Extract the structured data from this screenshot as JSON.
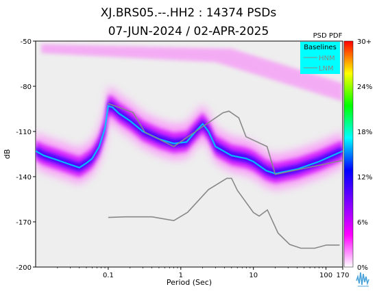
{
  "chart_data": {
    "type": "heatmap",
    "title_line1": "XJ.BRS05.--.HH2 : 14374 PSDs",
    "title_line2": "07-JUN-2024 / 02-APR-2025",
    "xlabel": "Period (Sec)",
    "ylabel": "dB",
    "x_scale": "log",
    "xlim": [
      0.01,
      170
    ],
    "ylim": [
      -200,
      -50
    ],
    "x_ticks": [
      "0.1",
      "1",
      "10",
      "100",
      "170"
    ],
    "x_tick_values": [
      0.1,
      1,
      10,
      100,
      170
    ],
    "y_ticks": [
      "-50",
      "-80",
      "-110",
      "-140",
      "-170",
      "-200"
    ],
    "y_tick_values": [
      -50,
      -80,
      -110,
      -140,
      -170,
      -200
    ],
    "background_color": "#eeeeee",
    "colorbar": {
      "title": "PSD PDF",
      "labels": [
        "30+",
        "24%",
        "18%",
        "12%",
        "6%",
        "0%"
      ],
      "label_values": [
        30,
        24,
        18,
        12,
        6,
        0
      ],
      "colors": [
        "#ffffff",
        "#ff00ff",
        "#7f00ff",
        "#0000ff",
        "#00ffff",
        "#00ff00",
        "#ffff00",
        "#ff0000"
      ]
    },
    "legend": {
      "title": "Baselines",
      "position": "top-right",
      "background": "#00ffff",
      "entries": [
        {
          "label": "HNM",
          "color": "#888888"
        },
        {
          "label": "LNM",
          "color": "#888888"
        }
      ]
    },
    "series": [
      {
        "name": "HNM",
        "color": "#888888",
        "points": [
          [
            0.1,
            -91.5
          ],
          [
            0.22,
            -97.4
          ],
          [
            0.32,
            -110.5
          ],
          [
            0.8,
            -120.0
          ],
          [
            3.8,
            -97.6
          ],
          [
            4.6,
            -96.5
          ],
          [
            6.3,
            -101.0
          ],
          [
            7.9,
            -113.5
          ],
          [
            15.4,
            -120.0
          ],
          [
            20.0,
            -138.5
          ],
          [
            354.8,
            -126.0
          ]
        ]
      },
      {
        "name": "LNM",
        "color": "#888888",
        "points": [
          [
            0.1,
            -167.1
          ],
          [
            0.17,
            -166.7
          ],
          [
            0.4,
            -166.7
          ],
          [
            0.8,
            -169.2
          ],
          [
            1.24,
            -163.7
          ],
          [
            2.4,
            -148.6
          ],
          [
            4.3,
            -141.1
          ],
          [
            5.0,
            -141.1
          ],
          [
            6.0,
            -149.0
          ],
          [
            10.0,
            -163.8
          ],
          [
            12.0,
            -166.2
          ],
          [
            15.6,
            -162.1
          ],
          [
            21.9,
            -177.5
          ],
          [
            31.6,
            -185.0
          ],
          [
            45.0,
            -187.5
          ],
          [
            70.0,
            -187.5
          ],
          [
            101.0,
            -185.4
          ],
          [
            154.0,
            -185.4
          ]
        ]
      }
    ],
    "pdf_mode_curve": {
      "description": "",
      "points": [
        [
          0.01,
          -123
        ],
        [
          0.013,
          -126
        ],
        [
          0.02,
          -129
        ],
        [
          0.03,
          -132
        ],
        [
          0.04,
          -134
        ],
        [
          0.05,
          -131
        ],
        [
          0.06,
          -128
        ],
        [
          0.075,
          -120
        ],
        [
          0.09,
          -108
        ],
        [
          0.1,
          -93
        ],
        [
          0.115,
          -94
        ],
        [
          0.14,
          -98
        ],
        [
          0.2,
          -103
        ],
        [
          0.3,
          -110
        ],
        [
          0.5,
          -115
        ],
        [
          0.8,
          -118
        ],
        [
          1.2,
          -117
        ],
        [
          1.6,
          -110
        ],
        [
          2.0,
          -105
        ],
        [
          2.4,
          -110
        ],
        [
          3.0,
          -120
        ],
        [
          5.0,
          -126
        ],
        [
          8.0,
          -128
        ],
        [
          10.0,
          -130
        ],
        [
          15.0,
          -136
        ],
        [
          20.0,
          -138
        ],
        [
          40.0,
          -135
        ],
        [
          80.0,
          -130
        ],
        [
          170.0,
          -123
        ]
      ]
    }
  }
}
